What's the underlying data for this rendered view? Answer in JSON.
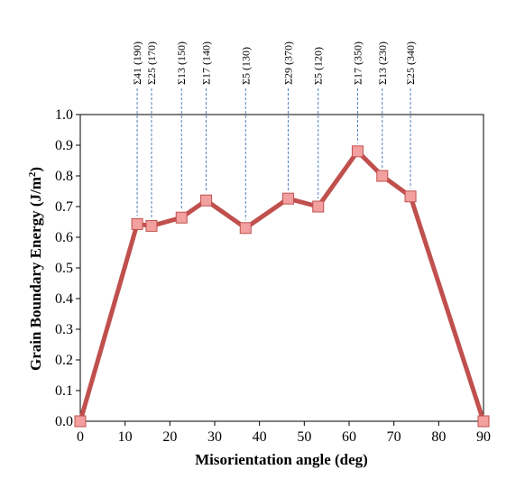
{
  "chart_data": {
    "type": "line",
    "title": "",
    "xlabel": "Misorientation angle (deg)",
    "ylabel": "Grain Boundary Energy (J/m",
    "ylabel_sup": "2",
    "ylabel_end": ")",
    "xlim": [
      0,
      90
    ],
    "ylim": [
      0,
      1
    ],
    "x_ticks": [
      0,
      10,
      20,
      30,
      40,
      50,
      60,
      70,
      80,
      90
    ],
    "x_tick_labels": [
      "0",
      "10",
      "20",
      "30",
      "40",
      "50",
      "60",
      "70",
      "80",
      "90"
    ],
    "y_ticks": [
      0,
      0.1,
      0.2,
      0.3,
      0.4,
      0.5,
      0.6,
      0.7,
      0.8,
      0.9,
      1.0
    ],
    "y_tick_labels": [
      "0.0",
      "0.1",
      "0.2",
      "0.3",
      "0.4",
      "0.5",
      "0.6",
      "0.7",
      "0.8",
      "0.9",
      "1.0"
    ],
    "grid": false,
    "legend": "none",
    "series": [
      {
        "line_color": "#c0504d",
        "marker_fill": "#f2a0a0",
        "marker_edge": "#c0504d",
        "marker": "square",
        "x": [
          0,
          12.7,
          15.9,
          22.6,
          28.1,
          36.9,
          46.4,
          53.1,
          61.9,
          67.4,
          73.7,
          90
        ],
        "y": [
          0.0,
          0.643,
          0.637,
          0.664,
          0.72,
          0.63,
          0.726,
          0.7,
          0.88,
          0.8,
          0.733,
          0.0
        ]
      }
    ],
    "annotations": [
      {
        "label": "Σ41 (190)",
        "x": 12.7,
        "y": 0.643
      },
      {
        "label": "Σ25 (170)",
        "x": 15.9,
        "y": 0.637
      },
      {
        "label": "Σ13 (150)",
        "x": 22.6,
        "y": 0.664
      },
      {
        "label": "Σ17 (140)",
        "x": 28.1,
        "y": 0.72
      },
      {
        "label": "Σ5 (130)",
        "x": 36.9,
        "y": 0.63
      },
      {
        "label": "Σ29 (370)",
        "x": 46.4,
        "y": 0.726
      },
      {
        "label": "Σ5 (120)",
        "x": 53.1,
        "y": 0.7
      },
      {
        "label": "Σ17 (350)",
        "x": 61.9,
        "y": 0.88
      },
      {
        "label": "Σ13 (230)",
        "x": 67.4,
        "y": 0.8
      },
      {
        "label": "Σ25 (340)",
        "x": 73.7,
        "y": 0.733
      }
    ],
    "annotation_line_color": "#4f81bd"
  }
}
